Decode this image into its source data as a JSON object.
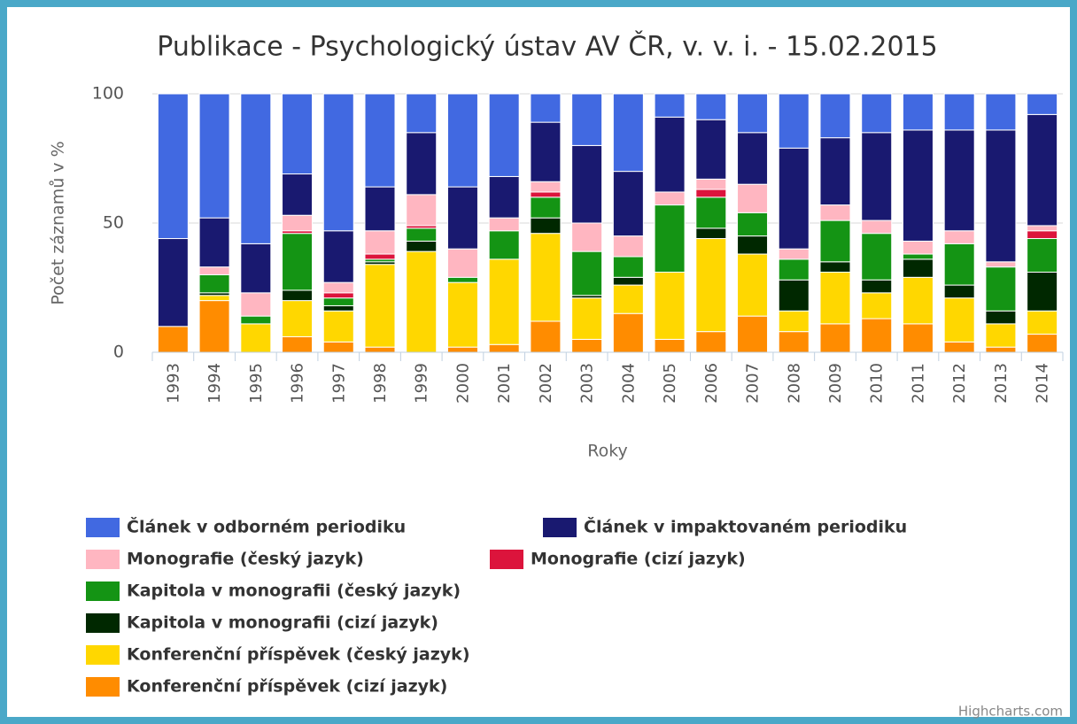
{
  "chart_data": {
    "type": "bar",
    "stacking": "percent",
    "title": "Publikace - Psychologický ústav AV ČR, v. v. i. - 15.02.2015",
    "x_label": "Roky",
    "y_label": "Počet záznamů v %",
    "credits": "Highcharts.com",
    "categories": [
      "1993",
      "1994",
      "1995",
      "1996",
      "1997",
      "1998",
      "1999",
      "2000",
      "2001",
      "2002",
      "2003",
      "2004",
      "2005",
      "2006",
      "2007",
      "2008",
      "2009",
      "2010",
      "2011",
      "2012",
      "2013",
      "2014"
    ],
    "ylim": [
      0,
      100
    ],
    "yticks": [
      0,
      50,
      100
    ],
    "grid": true,
    "series": [
      {
        "name": "Článek v odborném periodiku",
        "color": "#4169e1",
        "values": [
          56,
          48,
          58,
          31,
          53,
          36,
          15,
          36,
          32,
          11,
          20,
          30,
          9,
          10,
          15,
          21,
          17,
          15,
          14,
          14,
          14,
          8
        ]
      },
      {
        "name": "Článek v impaktovaném periodiku",
        "color": "#191970",
        "values": [
          34,
          19,
          19,
          16,
          20,
          17,
          24,
          24,
          16,
          23,
          30,
          25,
          29,
          23,
          20,
          39,
          26,
          34,
          43,
          39,
          51,
          43
        ]
      },
      {
        "name": "Monografie (český jazyk)",
        "color": "#ffb6c1",
        "values": [
          0,
          3,
          9,
          6,
          4,
          9,
          12,
          11,
          5,
          4,
          11,
          8,
          5,
          4,
          11,
          4,
          6,
          5,
          5,
          5,
          2,
          2
        ]
      },
      {
        "name": "Monografie (cizí jazyk)",
        "color": "#dc143c",
        "values": [
          0,
          0,
          0,
          1,
          2,
          2,
          1,
          0,
          0,
          2,
          0,
          0,
          0,
          3,
          0,
          0,
          0,
          0,
          0,
          0,
          0,
          3
        ]
      },
      {
        "name": "Kapitola v monografii (český jazyk)",
        "color": "#149414",
        "values": [
          0,
          7,
          3,
          22,
          3,
          1,
          5,
          2,
          11,
          8,
          17,
          8,
          26,
          12,
          9,
          8,
          16,
          18,
          2,
          16,
          17,
          13
        ]
      },
      {
        "name": "Kapitola v monografii (cizí jazyk)",
        "color": "#002800",
        "values": [
          0,
          1,
          0,
          4,
          2,
          1,
          4,
          0,
          0,
          6,
          1,
          3,
          0,
          4,
          7,
          12,
          4,
          5,
          7,
          5,
          5,
          15
        ]
      },
      {
        "name": "Konferenční příspěvek (český jazyk)",
        "color": "#ffd700",
        "values": [
          0,
          2,
          11,
          14,
          12,
          32,
          39,
          25,
          33,
          34,
          16,
          11,
          26,
          36,
          24,
          8,
          20,
          10,
          18,
          17,
          9,
          9
        ]
      },
      {
        "name": "Konferenční příspěvek (cizí jazyk)",
        "color": "#ff8c00",
        "values": [
          10,
          20,
          0,
          6,
          4,
          2,
          0,
          2,
          3,
          12,
          5,
          15,
          5,
          8,
          14,
          8,
          11,
          13,
          11,
          4,
          2,
          7
        ]
      }
    ]
  }
}
